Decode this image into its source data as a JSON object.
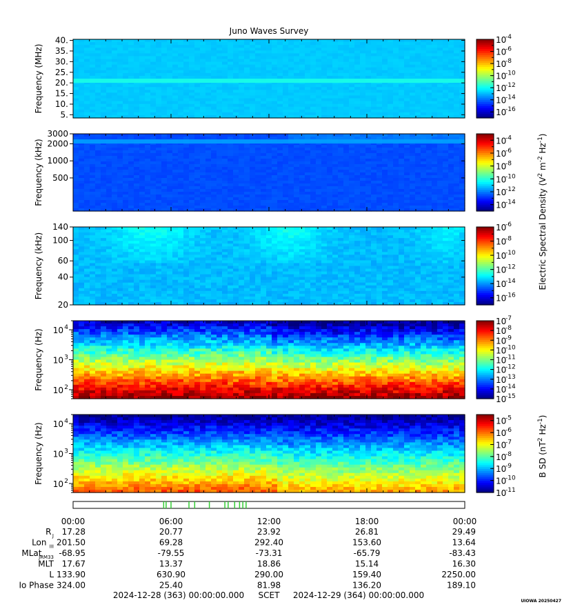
{
  "title": "Juno Waves Survey",
  "stamp": "UIOWA 20250427",
  "colors": {
    "jet": [
      "#00007f",
      "#0000ff",
      "#007fff",
      "#00ffff",
      "#7fff7f",
      "#ffff00",
      "#ff7f00",
      "#ff0000",
      "#7f0000"
    ],
    "marker": "#33cc33"
  },
  "chart_data": [
    {
      "type": "heatmap",
      "name": "panel-1",
      "ylabel": "Frequency (MHz)",
      "yscale": "linear",
      "ylim": [
        3.5,
        40.5
      ],
      "yticks": [
        "40.",
        "35.",
        "30.",
        "25.",
        "20.",
        "15.",
        "10.",
        "5."
      ],
      "colorbar_ticks": [
        "10",
        "10",
        "10",
        "10",
        "10",
        "10",
        "10"
      ],
      "colorbar_exps": [
        "-4",
        "-6",
        "-8",
        "-10",
        "-12",
        "-14",
        "-16"
      ],
      "colorbar_range": [
        -17,
        -4
      ],
      "background_level": -12.8,
      "bands": [
        {
          "freq": 21.0,
          "level": -11.8
        }
      ]
    },
    {
      "type": "heatmap",
      "name": "panel-2",
      "ylabel": "Frequency (kHz)",
      "yscale": "log",
      "ylim": [
        130,
        3000
      ],
      "yticks": [
        "3000",
        "2000",
        "1000",
        "500"
      ],
      "colorbar_ticks": [
        "10",
        "10",
        "10",
        "10",
        "10",
        "10"
      ],
      "colorbar_exps": [
        "-4",
        "-6",
        "-8",
        "-10",
        "-12",
        "-14"
      ],
      "colorbar_range": [
        -15,
        -3
      ],
      "background_level": -12.6,
      "bands": [
        {
          "freq": 2200,
          "level": -11.6
        }
      ]
    },
    {
      "type": "heatmap",
      "name": "panel-3",
      "ylabel": "Frequency (kHz)",
      "yscale": "log",
      "ylim": [
        20,
        140
      ],
      "yticks": [
        "140",
        "100",
        "60",
        "40",
        "20"
      ],
      "colorbar_ticks": [
        "10",
        "10",
        "10",
        "10",
        "10",
        "10"
      ],
      "colorbar_exps": [
        "-6",
        "-8",
        "-10",
        "-12",
        "-14",
        "-16"
      ],
      "colorbar_range": [
        -17,
        -6
      ],
      "background_level": -13.6,
      "bands": []
    },
    {
      "type": "heatmap",
      "name": "panel-4",
      "ylabel": "Frequency (Hz)",
      "yscale": "log",
      "ylim": [
        50,
        20000
      ],
      "yticks_base": [
        "10",
        "10",
        "10"
      ],
      "yticks_exps": [
        "4",
        "3",
        "2"
      ],
      "colorbar_ticks": [
        "10",
        "10",
        "10",
        "10",
        "10",
        "10",
        "10",
        "10",
        "10"
      ],
      "colorbar_exps": [
        "-7",
        "-8",
        "-9",
        "-10",
        "-11",
        "-12",
        "-13",
        "-14",
        "-15"
      ],
      "colorbar_range": [
        -15,
        -7
      ],
      "background_level": -11,
      "bands": []
    },
    {
      "type": "heatmap",
      "name": "panel-5",
      "ylabel": "Frequency (Hz)",
      "yscale": "log",
      "ylim": [
        50,
        20000
      ],
      "yticks_base": [
        "10",
        "10",
        "10"
      ],
      "yticks_exps": [
        "4",
        "3",
        "2"
      ],
      "colorbar_ticks": [
        "10",
        "10",
        "10",
        "10",
        "10",
        "10",
        "10"
      ],
      "colorbar_exps": [
        "-5",
        "-6",
        "-7",
        "-8",
        "-9",
        "-10",
        "-11"
      ],
      "colorbar_range": [
        -11,
        -4.5
      ],
      "background_level": -8,
      "bands": []
    }
  ],
  "colorbar_labels": {
    "electric": "Electric Spectral Density (V",
    "electric_sup1": "2",
    "electric_mid": " m",
    "electric_sup2": "-2",
    "electric_mid2": " Hz",
    "electric_sup3": "-1",
    "electric_end": ")",
    "magnetic": "B SD (nT",
    "magnetic_sup1": "2",
    "magnetic_mid": " Hz",
    "magnetic_sup2": "-1",
    "magnetic_end": ")"
  },
  "time_axis": {
    "ticks": [
      "00:00",
      "06:00",
      "12:00",
      "18:00",
      "00:00"
    ],
    "markers_hours": [
      5.55,
      5.7,
      6.0,
      7.1,
      7.45,
      8.35,
      9.3,
      9.5,
      9.9,
      10.2,
      10.4,
      10.6
    ]
  },
  "ephemeris": {
    "rows": [
      {
        "label": "R",
        "sub": "J",
        "values": [
          "17.28",
          "20.77",
          "23.92",
          "26.81",
          "29.49"
        ]
      },
      {
        "label": "Lon",
        "sub": "III",
        "values": [
          "201.50",
          "69.28",
          "292.40",
          "153.60",
          "13.64"
        ]
      },
      {
        "label": "MLat",
        "sub": "JRM33",
        "values": [
          "-68.95",
          "-79.55",
          "-73.31",
          "-65.79",
          "-83.43"
        ]
      },
      {
        "label": "MLT",
        "sub": "",
        "values": [
          "17.67",
          "13.37",
          "18.86",
          "15.14",
          "16.30"
        ]
      },
      {
        "label": "L",
        "sub": "",
        "values": [
          "133.90",
          "630.90",
          "290.00",
          "159.40",
          "2250.00"
        ]
      },
      {
        "label": "Io Phase",
        "sub": "",
        "values": [
          "324.00",
          "25.40",
          "81.98",
          "136.20",
          "189.10"
        ]
      }
    ]
  },
  "footer": {
    "start": "2024-12-28 (363) 00:00:00.000",
    "scet": "SCET",
    "end": "2024-12-29 (364) 00:00:00.000"
  }
}
